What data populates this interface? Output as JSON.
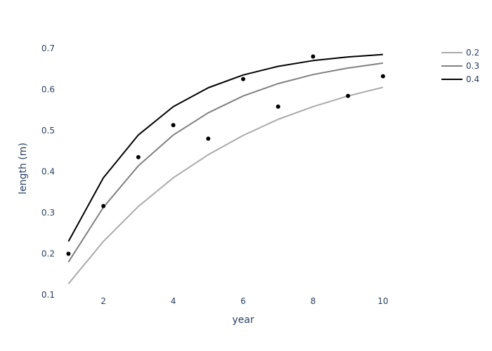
{
  "chart_data": {
    "type": "line",
    "title": "",
    "xlabel": "year",
    "ylabel": "length (m)",
    "xlim": [
      0.65,
      11.35
    ],
    "ylim": [
      0.1,
      0.715
    ],
    "xticks": [
      2,
      4,
      6,
      8,
      10
    ],
    "yticks": [
      0.1,
      0.2,
      0.3,
      0.4,
      0.5,
      0.6,
      0.7
    ],
    "grid": false,
    "legend": "top-right",
    "x": [
      1,
      2,
      3,
      4,
      5,
      6,
      7,
      8,
      9,
      10
    ],
    "series": [
      {
        "name": "0.2",
        "color": "#aaaaaa",
        "mode": "lines",
        "values": [
          0.127,
          0.23,
          0.315,
          0.385,
          0.441,
          0.488,
          0.527,
          0.558,
          0.584,
          0.605
        ]
      },
      {
        "name": "0.3",
        "color": "#808080",
        "mode": "lines",
        "values": [
          0.18,
          0.313,
          0.414,
          0.489,
          0.543,
          0.584,
          0.614,
          0.636,
          0.652,
          0.664
        ]
      },
      {
        "name": "0.4",
        "color": "#000000",
        "mode": "lines",
        "values": [
          0.23,
          0.385,
          0.489,
          0.558,
          0.604,
          0.635,
          0.656,
          0.67,
          0.679,
          0.685
        ]
      },
      {
        "name": "",
        "color": "#000000",
        "mode": "markers",
        "showlegend": false,
        "values": [
          0.2,
          0.316,
          0.435,
          0.513,
          0.48,
          0.625,
          0.558,
          0.68,
          0.584,
          0.632
        ]
      }
    ]
  }
}
